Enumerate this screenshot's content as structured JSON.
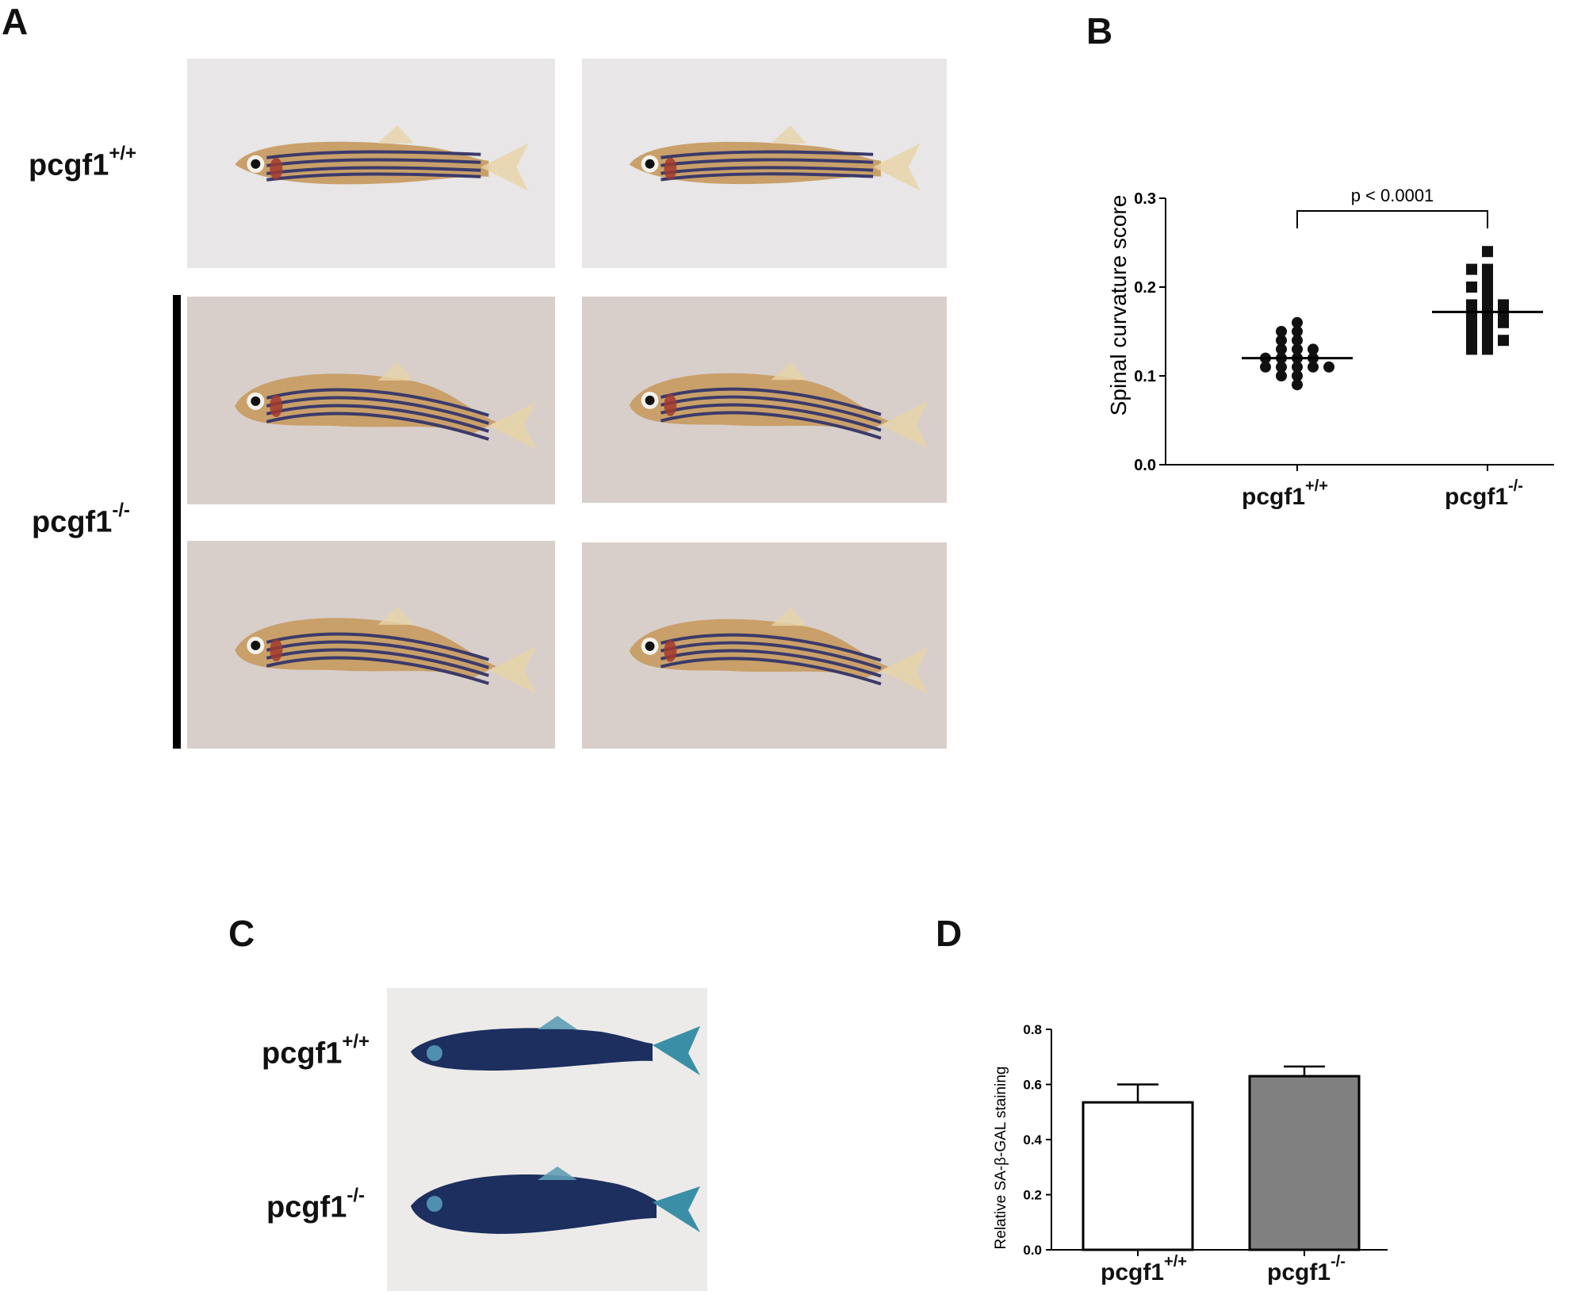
{
  "panels": {
    "A": {
      "letter": "A",
      "labels": [
        {
          "base": "pcgf1",
          "sup": "+/+"
        },
        {
          "base": "pcgf1",
          "sup": "-/-"
        }
      ]
    },
    "B": {
      "letter": "B"
    },
    "C": {
      "letter": "C",
      "labels": [
        {
          "base": "pcgf1",
          "sup": "+/+"
        },
        {
          "base": "pcgf1",
          "sup": "-/-"
        }
      ]
    },
    "D": {
      "letter": "D"
    }
  },
  "colors": {
    "photo_bg_light": "#e8e6e6",
    "photo_bg_warm": "#d8cfcb",
    "fish_body": "#c9a06a",
    "fish_stripe": "#3b3a6a",
    "stained_fish": "#1c2f5e",
    "bar_ko": "#808080",
    "bar_wt": "#ffffff"
  },
  "chart_data": [
    {
      "type": "scatter",
      "ylabel": "Spinal curvature score",
      "categories": [
        {
          "base": "pcgf1",
          "sup": "+/+"
        },
        {
          "base": "pcgf1",
          "sup": "-/-"
        }
      ],
      "ylim": [
        0.0,
        0.3
      ],
      "yticks": [
        "0.0",
        "0.1",
        "0.2",
        "0.3"
      ],
      "annotation": "p < 0.0001",
      "grid": false,
      "series": [
        {
          "marker": "circle",
          "mean": 0.12,
          "values": [
            0.16,
            0.15,
            0.14,
            0.15,
            0.14,
            0.13,
            0.13,
            0.13,
            0.12,
            0.12,
            0.12,
            0.12,
            0.11,
            0.11,
            0.11,
            0.11,
            0.11,
            0.1,
            0.1,
            0.09
          ]
        },
        {
          "marker": "square",
          "mean": 0.172,
          "values": [
            0.24,
            0.22,
            0.22,
            0.21,
            0.2,
            0.2,
            0.19,
            0.18,
            0.18,
            0.18,
            0.17,
            0.17,
            0.17,
            0.16,
            0.16,
            0.16,
            0.15,
            0.15,
            0.14,
            0.14,
            0.14,
            0.13,
            0.13
          ]
        }
      ]
    },
    {
      "type": "bar",
      "ylabel": "Relative SA-β-GAL staining",
      "categories": [
        {
          "base": "pcgf1",
          "sup": "+/+"
        },
        {
          "base": "pcgf1",
          "sup": "-/-"
        }
      ],
      "values": [
        0.535,
        0.63
      ],
      "errors": [
        0.065,
        0.035
      ],
      "ylim": [
        0.0,
        0.8
      ],
      "yticks": [
        "0.0",
        "0.2",
        "0.4",
        "0.6",
        "0.8"
      ],
      "grid": false
    }
  ]
}
